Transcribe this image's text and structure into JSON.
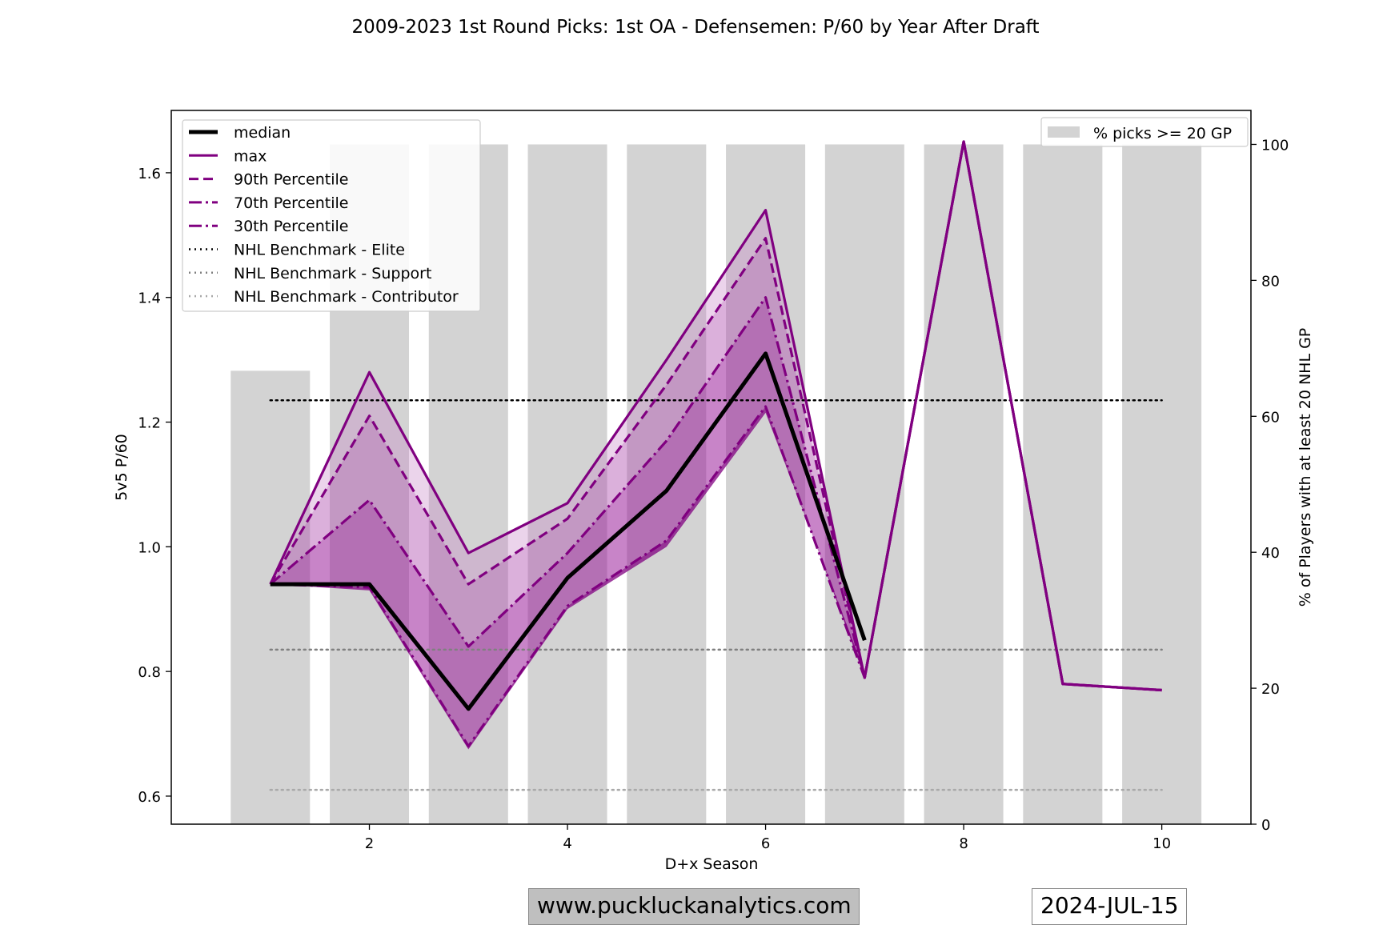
{
  "chart_data": {
    "type": "line",
    "title": "2009-2023 1st Round Picks: 1st OA - Defensemen: P/60 by Year After Draft",
    "xlabel": "D+x Season",
    "ylabel": "5v5 P/60",
    "y2label": "% of Players with at least 20 NHL GP",
    "xlim": [
      0.0,
      10.9
    ],
    "ylim": [
      0.555,
      1.7
    ],
    "y2lim": [
      0,
      105
    ],
    "xticks": [
      2,
      4,
      6,
      8,
      10
    ],
    "yticks": [
      0.6,
      0.8,
      1.0,
      1.2,
      1.4,
      1.6
    ],
    "y2ticks": [
      0,
      20,
      40,
      60,
      80,
      100
    ],
    "grid": false,
    "legend_position": "top-left",
    "legend2_position": "top-right",
    "bars": {
      "name": "% picks >= 20 GP",
      "color": "#d3d3d3",
      "x": [
        1,
        2,
        3,
        4,
        5,
        6,
        7,
        8,
        9,
        10
      ],
      "values": [
        66.7,
        100,
        100,
        100,
        100,
        100,
        100,
        100,
        100,
        100
      ]
    },
    "x": [
      1,
      2,
      3,
      4,
      5,
      6,
      7,
      8,
      9,
      10
    ],
    "series": [
      {
        "name": "max",
        "color": "#800080",
        "style": "solid",
        "values": [
          0.94,
          1.28,
          0.99,
          1.07,
          1.3,
          1.54,
          0.79,
          1.65,
          0.78,
          0.77
        ]
      },
      {
        "name": "90th Percentile",
        "color": "#800080",
        "style": "dashed",
        "values": [
          0.94,
          1.21,
          0.94,
          1.045,
          1.26,
          1.495,
          0.79,
          1.65,
          0.78,
          0.77
        ]
      },
      {
        "name": "70th Percentile",
        "color": "#800080",
        "style": "dashdot",
        "values": [
          0.94,
          1.075,
          0.84,
          0.99,
          1.17,
          1.4,
          0.79,
          1.65,
          0.78,
          0.77
        ]
      },
      {
        "name": "30th Percentile",
        "color": "#800080",
        "style": "dashdot",
        "values": [
          0.94,
          0.935,
          0.68,
          0.905,
          1.01,
          1.225,
          0.79,
          1.65,
          0.78,
          0.77
        ]
      },
      {
        "name": "median",
        "color": "#000000",
        "style": "solid",
        "x": [
          1,
          2,
          3,
          4,
          5,
          6,
          7
        ],
        "values": [
          0.94,
          0.94,
          0.74,
          0.95,
          1.09,
          1.31,
          0.85
        ]
      }
    ],
    "hidden_lower": {
      "x": [
        1,
        2,
        3,
        4,
        5,
        6,
        7
      ],
      "values": [
        0.94,
        0.93,
        0.675,
        0.9,
        1.0,
        1.215,
        0.8
      ]
    },
    "benchmarks": [
      {
        "name": "NHL Benchmark - Elite",
        "value": 1.235,
        "color": "#000000"
      },
      {
        "name": "NHL Benchmark - Support",
        "value": 0.835,
        "color": "#808080"
      },
      {
        "name": "NHL Benchmark - Contributor",
        "value": 0.61,
        "color": "#a9a9a9"
      }
    ],
    "legend": [
      "median",
      "max",
      "90th Percentile",
      "70th Percentile",
      "30th Percentile",
      "NHL Benchmark - Elite",
      "NHL Benchmark - Support",
      "NHL Benchmark - Contributor"
    ],
    "legend2": [
      "% picks >= 20 GP"
    ]
  },
  "footer": {
    "website": "www.puckluckanalytics.com",
    "date": "2024-JUL-15"
  }
}
